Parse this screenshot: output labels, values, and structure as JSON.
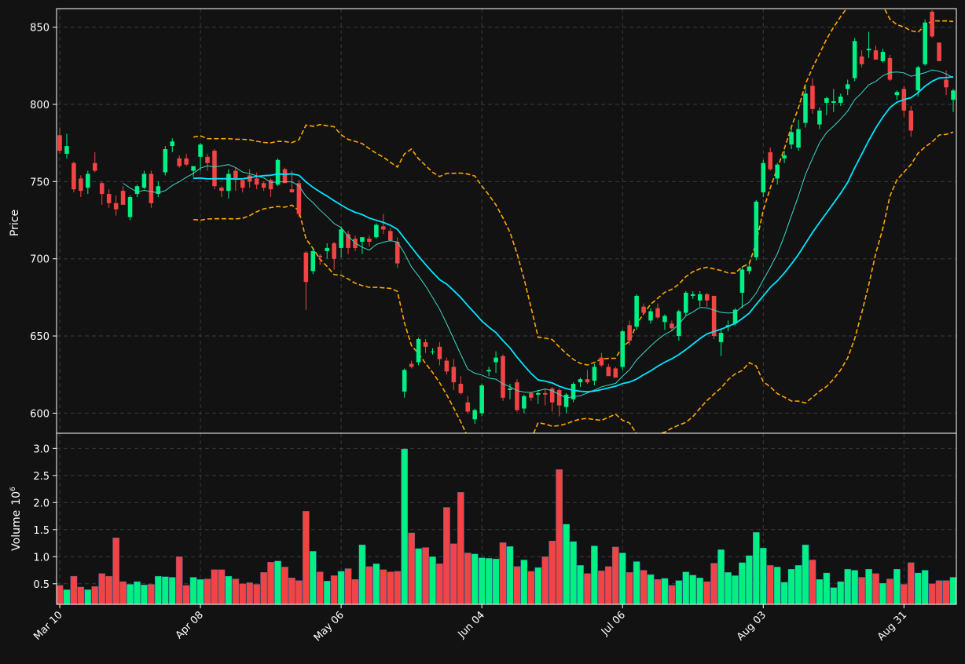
{
  "chart_data": {
    "type": "candlestick",
    "colors": {
      "background": "#121212",
      "up": "#00f084",
      "down": "#f24444",
      "ma_fast": "#3ad8c8",
      "ma_slow": "#00e5ff",
      "bands": "#ffa500",
      "grid": "#3a3a3a",
      "text": "#ffffff",
      "frame": "#ffffff"
    },
    "xtick_labels": [
      "Mar 10",
      "Apr 08",
      "May 06",
      "Jun 04",
      "Jul 06",
      "Aug 03",
      "Aug 31"
    ],
    "price_panel": {
      "ylabel": "Price",
      "ylim": [
        587,
        862
      ],
      "yticks": [
        600,
        650,
        700,
        750,
        800,
        850
      ],
      "candles_ohlc": [
        [
          780.0,
          785.0,
          768.0,
          770.0
        ],
        [
          768.0,
          781.0,
          765.0,
          773.0
        ],
        [
          762.0,
          763.0,
          743.0,
          745.0
        ],
        [
          752.0,
          754.0,
          740.0,
          744.0
        ],
        [
          746.0,
          757.0,
          742.0,
          755.0
        ],
        [
          762.0,
          769.0,
          756.0,
          757.0
        ],
        [
          749.0,
          750.0,
          735.0,
          742.0
        ],
        [
          742.0,
          745.0,
          733.0,
          736.0
        ],
        [
          736.0,
          741.0,
          728.0,
          732.0
        ],
        [
          744.0,
          747.0,
          735.0,
          735.0
        ],
        [
          727.0,
          741.0,
          725.0,
          740.0
        ],
        [
          742.0,
          748.0,
          740.0,
          747.0
        ],
        [
          746.0,
          757.0,
          745.0,
          755.0
        ],
        [
          755.0,
          757.0,
          733.0,
          736.0
        ],
        [
          742.0,
          750.0,
          740.0,
          747.0
        ],
        [
          756.0,
          773.0,
          754.0,
          771.0
        ],
        [
          773.0,
          778.0,
          769.0,
          776.0
        ],
        [
          765.0,
          767.0,
          759.0,
          760.0
        ],
        [
          765.0,
          768.0,
          760.0,
          761.0
        ],
        [
          757.0,
          760.0,
          753.0,
          760.0
        ],
        [
          766.0,
          775.0,
          757.0,
          774.0
        ],
        [
          766.0,
          768.0,
          757.0,
          762.0
        ],
        [
          770.0,
          771.0,
          745.0,
          747.0
        ],
        [
          746.0,
          747.0,
          740.0,
          744.0
        ],
        [
          744.0,
          758.0,
          739.0,
          755.0
        ],
        [
          757.0,
          759.0,
          744.0,
          752.0
        ],
        [
          751.0,
          751.0,
          743.0,
          746.0
        ],
        [
          754.0,
          758.0,
          746.0,
          750.0
        ],
        [
          752.0,
          756.0,
          745.0,
          748.0
        ],
        [
          749.0,
          750.0,
          744.0,
          746.0
        ],
        [
          751.0,
          752.0,
          740.0,
          745.0
        ],
        [
          748.0,
          765.0,
          747.0,
          764.0
        ],
        [
          758.0,
          759.0,
          749.0,
          749.0
        ],
        [
          745.0,
          757.0,
          743.0,
          743.0
        ],
        [
          749.0,
          751.0,
          727.0,
          729.0
        ],
        [
          704.0,
          705.0,
          667.0,
          685.0
        ],
        [
          692.0,
          707.0,
          690.0,
          705.0
        ],
        [
          702.0,
          703.0,
          696.0,
          701.0
        ],
        [
          705.0,
          710.0,
          700.0,
          707.0
        ],
        [
          710.0,
          711.0,
          693.0,
          700.0
        ],
        [
          707.0,
          721.0,
          701.0,
          719.0
        ],
        [
          716.0,
          718.0,
          703.0,
          707.0
        ],
        [
          713.0,
          715.0,
          705.0,
          707.0
        ],
        [
          711.0,
          714.0,
          703.0,
          714.0
        ],
        [
          713.0,
          715.0,
          708.0,
          711.0
        ],
        [
          714.0,
          723.0,
          713.0,
          722.0
        ],
        [
          721.0,
          729.0,
          716.0,
          719.0
        ],
        [
          718.0,
          720.0,
          711.0,
          712.0
        ],
        [
          711.0,
          714.0,
          694.0,
          697.0
        ],
        [
          614.0,
          629.0,
          610.0,
          628.0
        ],
        [
          632.0,
          634.0,
          629.0,
          630.0
        ],
        [
          633.0,
          649.0,
          631.0,
          648.0
        ],
        [
          646.0,
          648.0,
          639.0,
          643.0
        ],
        [
          640.0,
          642.0,
          638.0,
          640.0
        ],
        [
          643.0,
          646.0,
          631.0,
          635.0
        ],
        [
          634.0,
          636.0,
          625.0,
          627.0
        ],
        [
          630.0,
          635.0,
          615.0,
          620.0
        ],
        [
          619.0,
          624.0,
          612.0,
          613.0
        ],
        [
          607.0,
          611.0,
          600.0,
          601.0
        ],
        [
          596.0,
          603.0,
          593.0,
          602.0
        ],
        [
          600.0,
          619.0,
          598.0,
          618.0
        ],
        [
          627.0,
          630.0,
          624.0,
          628.0
        ],
        [
          633.0,
          640.0,
          626.0,
          636.0
        ],
        [
          637.0,
          638.0,
          608.0,
          610.0
        ],
        [
          615.0,
          619.0,
          609.0,
          616.0
        ],
        [
          620.0,
          622.0,
          601.0,
          602.0
        ],
        [
          603.0,
          612.0,
          600.0,
          611.0
        ],
        [
          613.0,
          614.0,
          608.0,
          610.0
        ],
        [
          612.0,
          615.0,
          606.0,
          613.0
        ],
        [
          613.0,
          616.0,
          605.0,
          612.0
        ],
        [
          616.0,
          617.0,
          601.0,
          607.0
        ],
        [
          615.0,
          616.0,
          598.0,
          605.0
        ],
        [
          604.0,
          613.0,
          600.0,
          612.0
        ],
        [
          609.0,
          620.0,
          607.0,
          619.0
        ],
        [
          620.0,
          623.0,
          617.0,
          622.0
        ],
        [
          622.0,
          628.0,
          619.0,
          620.0
        ],
        [
          621.0,
          632.0,
          618.0,
          630.0
        ],
        [
          636.0,
          639.0,
          630.0,
          631.0
        ],
        [
          630.0,
          632.0,
          624.0,
          624.0
        ],
        [
          629.0,
          630.0,
          623.0,
          623.0
        ],
        [
          630.0,
          654.0,
          628.0,
          653.0
        ],
        [
          657.0,
          660.0,
          644.0,
          647.0
        ],
        [
          656.0,
          677.0,
          654.0,
          676.0
        ],
        [
          669.0,
          671.0,
          664.0,
          665.0
        ],
        [
          660.0,
          668.0,
          658.0,
          666.0
        ],
        [
          668.0,
          671.0,
          661.0,
          662.0
        ],
        [
          659.0,
          664.0,
          654.0,
          663.0
        ],
        [
          658.0,
          660.0,
          653.0,
          655.0
        ],
        [
          650.0,
          667.0,
          647.0,
          666.0
        ],
        [
          665.0,
          679.0,
          663.0,
          678.0
        ],
        [
          676.0,
          679.0,
          674.0,
          677.0
        ],
        [
          673.0,
          679.0,
          669.0,
          677.0
        ],
        [
          677.0,
          678.0,
          669.0,
          673.0
        ],
        [
          676.0,
          676.0,
          648.0,
          650.0
        ],
        [
          646.0,
          654.0,
          637.0,
          652.0
        ],
        [
          656.0,
          660.0,
          653.0,
          657.0
        ],
        [
          658.0,
          668.0,
          657.0,
          667.0
        ],
        [
          678.0,
          695.0,
          668.0,
          693.0
        ],
        [
          692.0,
          698.0,
          690.0,
          695.0
        ],
        [
          701.0,
          738.0,
          699.0,
          737.0
        ],
        [
          743.0,
          764.0,
          740.0,
          762.0
        ],
        [
          769.0,
          772.0,
          757.0,
          758.0
        ],
        [
          752.0,
          762.0,
          748.0,
          761.0
        ],
        [
          765.0,
          770.0,
          762.0,
          767.0
        ],
        [
          774.0,
          785.0,
          771.0,
          782.0
        ],
        [
          772.0,
          790.0,
          770.0,
          784.0
        ],
        [
          788.0,
          812.0,
          785.0,
          807.0
        ],
        [
          812.0,
          817.0,
          794.0,
          797.0
        ],
        [
          787.0,
          798.0,
          784.0,
          796.0
        ],
        [
          801.0,
          805.0,
          793.0,
          804.0
        ],
        [
          801.0,
          810.0,
          795.0,
          802.0
        ],
        [
          801.0,
          807.0,
          799.0,
          805.0
        ],
        [
          810.0,
          816.0,
          806.0,
          813.0
        ],
        [
          817.0,
          843.0,
          815.0,
          841.0
        ],
        [
          831.0,
          835.0,
          824.0,
          826.0
        ],
        [
          835.0,
          847.0,
          830.0,
          836.0
        ],
        [
          835.0,
          838.0,
          829.0,
          829.0
        ],
        [
          828.0,
          836.0,
          827.0,
          834.0
        ],
        [
          830.0,
          832.0,
          815.0,
          816.0
        ],
        [
          806.0,
          809.0,
          803.0,
          808.0
        ],
        [
          810.0,
          812.0,
          792.0,
          796.0
        ],
        [
          796.0,
          799.0,
          779.0,
          783.0
        ],
        [
          809.0,
          825.0,
          805.0,
          824.0
        ],
        [
          826.0,
          855.0,
          825.0,
          853.0
        ],
        [
          860.0,
          861.0,
          843.0,
          844.0
        ],
        [
          840.0,
          840.0,
          828.0,
          828.0
        ],
        [
          816.0,
          822.0,
          806.0,
          811.0
        ],
        [
          803.0,
          810.0,
          795.0,
          809.0
        ]
      ],
      "moving_averages": [
        {
          "style": "thin",
          "values": [
            null,
            null,
            null,
            null,
            null,
            null,
            null,
            null,
            null,
            null,
            null,
            null,
            null,
            null,
            null,
            null,
            null,
            null,
            null,
            null,
            null,
            null,
            null,
            null,
            null,
            null,
            null,
            null,
            null,
            null,
            null,
            null,
            null,
            null,
            null,
            null,
            null,
            null,
            null,
            null,
            null,
            null,
            null,
            null,
            null,
            null,
            null,
            null,
            null,
            null,
            null,
            null,
            null,
            null,
            null,
            null,
            null,
            null,
            null,
            null,
            null,
            null,
            null,
            null,
            null,
            null,
            null,
            null,
            null,
            null,
            null,
            null,
            null,
            null,
            null,
            null,
            null,
            null,
            null,
            null,
            null,
            null,
            null,
            null,
            null,
            null,
            null,
            null,
            null,
            null,
            null,
            null,
            null,
            null,
            null,
            null,
            null,
            null,
            null,
            null,
            null,
            null,
            null,
            null,
            null,
            null,
            null,
            null,
            null,
            null,
            null,
            null,
            null,
            null,
            null,
            null,
            null,
            null,
            null,
            null,
            null,
            null,
            null,
            null,
            null,
            null,
            null,
            null
          ]
        },
        {
          "style": "thick",
          "values": []
        }
      ],
      "bollinger_upper": [],
      "bollinger_lower": []
    },
    "volume_panel": {
      "ylabel": "Volume",
      "multiplier_label": "10",
      "multiplier_exponent": "6",
      "ylim": [
        0.12,
        3.28
      ],
      "yticks": [
        0.5,
        1.0,
        1.5,
        2.0,
        2.5,
        3.0
      ],
      "ytick_labels": [
        "0.5",
        "1.0",
        "1.5",
        "2.0",
        "2.5",
        "3.0"
      ],
      "values": [
        0.47,
        0.39,
        0.64,
        0.44,
        0.39,
        0.45,
        0.69,
        0.64,
        1.35,
        0.54,
        0.49,
        0.54,
        0.48,
        0.49,
        0.64,
        0.63,
        0.62,
        1.0,
        0.47,
        0.62,
        0.58,
        0.59,
        0.76,
        0.76,
        0.64,
        0.59,
        0.5,
        0.52,
        0.49,
        0.71,
        0.9,
        0.92,
        0.81,
        0.61,
        0.56,
        1.84,
        1.1,
        0.72,
        0.55,
        0.65,
        0.73,
        0.78,
        0.58,
        1.22,
        0.82,
        0.87,
        0.76,
        0.72,
        0.73,
        2.99,
        1.44,
        1.15,
        1.17,
        1.0,
        0.87,
        1.91,
        1.24,
        2.19,
        1.07,
        1.05,
        0.98,
        0.97,
        0.96,
        1.26,
        1.19,
        0.82,
        0.94,
        0.73,
        0.8,
        1.0,
        1.29,
        2.61,
        1.6,
        1.28,
        0.84,
        0.69,
        1.2,
        0.74,
        0.82,
        1.18,
        1.07,
        0.71,
        0.91,
        0.75,
        0.67,
        0.58,
        0.6,
        0.47,
        0.56,
        0.72,
        0.66,
        0.61,
        0.54,
        0.88,
        1.13,
        0.71,
        0.65,
        0.89,
        1.02,
        1.45,
        1.16,
        0.84,
        0.81,
        0.53,
        0.77,
        0.84,
        1.22,
        0.94,
        0.58,
        0.7,
        0.43,
        0.54,
        0.77,
        0.75,
        0.62,
        0.77,
        0.69,
        0.51,
        0.59,
        0.77,
        0.49,
        0.89,
        0.7,
        0.75,
        0.5,
        0.56,
        0.56,
        0.62
      ]
    }
  }
}
